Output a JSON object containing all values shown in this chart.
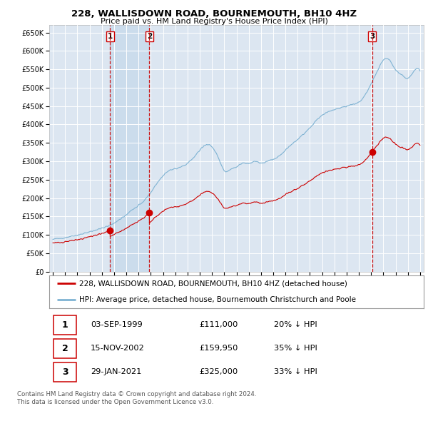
{
  "title": "228, WALLISDOWN ROAD, BOURNEMOUTH, BH10 4HZ",
  "subtitle": "Price paid vs. HM Land Registry's House Price Index (HPI)",
  "background_color": "#ffffff",
  "plot_bg_color": "#dce6f1",
  "grid_color": "#ffffff",
  "sale_points": [
    {
      "date": 1999.67,
      "price": 111000,
      "label": "1"
    },
    {
      "date": 2002.88,
      "price": 159950,
      "label": "2"
    },
    {
      "date": 2021.08,
      "price": 325000,
      "label": "3"
    }
  ],
  "legend_line1": "228, WALLISDOWN ROAD, BOURNEMOUTH, BH10 4HZ (detached house)",
  "legend_line2": "HPI: Average price, detached house, Bournemouth Christchurch and Poole",
  "table_rows": [
    {
      "num": "1",
      "date": "03-SEP-1999",
      "price": "£111,000",
      "pct": "20% ↓ HPI"
    },
    {
      "num": "2",
      "date": "15-NOV-2002",
      "price": "£159,950",
      "pct": "35% ↓ HPI"
    },
    {
      "num": "3",
      "date": "29-JAN-2021",
      "price": "£325,000",
      "pct": "33% ↓ HPI"
    }
  ],
  "footer1": "Contains HM Land Registry data © Crown copyright and database right 2024.",
  "footer2": "This data is licensed under the Open Government Licence v3.0.",
  "hpi_color": "#7fb3d3",
  "sale_color": "#cc0000",
  "shade_color": "#c5d8ea",
  "ylim": [
    0,
    670000
  ],
  "xlim": [
    1994.7,
    2025.3
  ],
  "yticks": [
    0,
    50000,
    100000,
    150000,
    200000,
    250000,
    300000,
    350000,
    400000,
    450000,
    500000,
    550000,
    600000,
    650000
  ]
}
